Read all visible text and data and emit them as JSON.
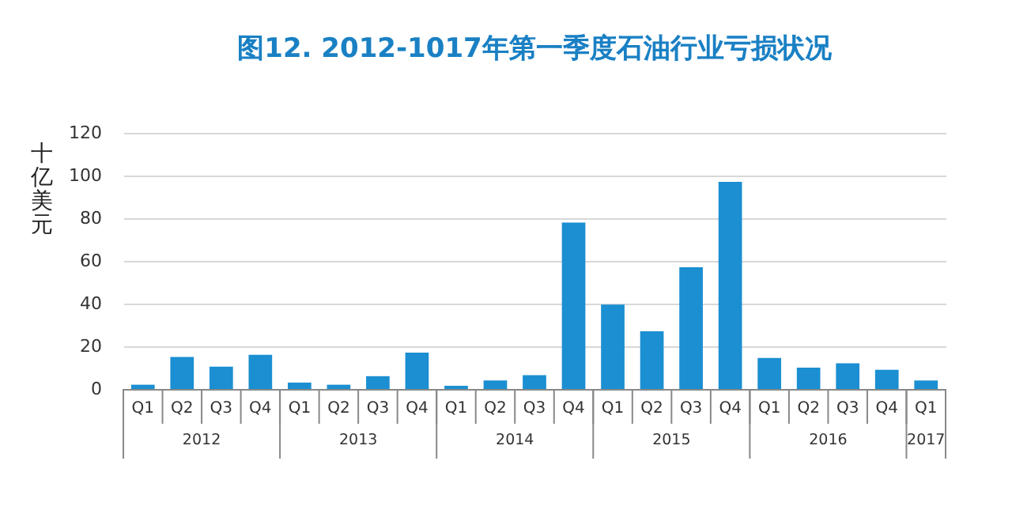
{
  "chart_data": {
    "type": "bar",
    "title": "图12. 2012-1017年第一季度石油行业亏损状况",
    "ylabel": "十亿美元",
    "categories": [
      "Q1",
      "Q2",
      "Q3",
      "Q4",
      "Q1",
      "Q2",
      "Q3",
      "Q4",
      "Q1",
      "Q2",
      "Q3",
      "Q4",
      "Q1",
      "Q2",
      "Q3",
      "Q4",
      "Q1",
      "Q2",
      "Q3",
      "Q4",
      "Q1"
    ],
    "values": [
      2,
      15,
      10.5,
      16,
      3,
      2,
      6,
      17,
      1.5,
      4,
      6.5,
      78,
      39.5,
      27,
      57,
      97,
      14.5,
      10,
      12,
      9,
      4
    ],
    "color": "#1b8fd2",
    "annotations": [
      "2012",
      "2013",
      "2014",
      "2015",
      "2016",
      "2017"
    ],
    "ylim": [
      0,
      120
    ],
    "yticks": [
      0,
      20,
      40,
      60,
      80,
      100,
      120
    ],
    "grid": "y"
  }
}
